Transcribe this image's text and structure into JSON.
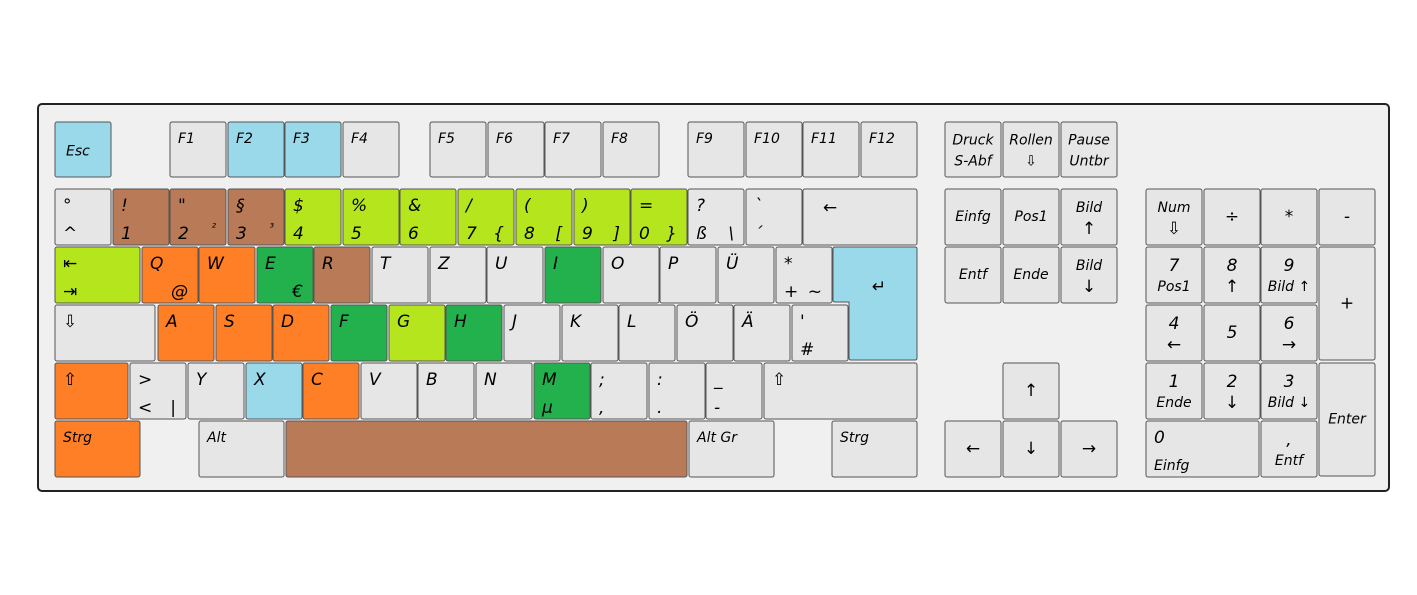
{
  "keyboard": {
    "rows": [
      [
        {
          "labels": [
            "Esc"
          ],
          "color": "#9ad9ea"
        },
        {
          "labels": [
            "F1"
          ],
          "color": "#e6e6e6"
        },
        {
          "labels": [
            "F2"
          ],
          "color": "#9ad9ea"
        },
        {
          "labels": [
            "F3"
          ],
          "color": "#9ad9ea"
        },
        {
          "labels": [
            "F4"
          ],
          "color": "#e6e6e6"
        },
        {
          "labels": [
            "F5"
          ],
          "color": "#e6e6e6"
        },
        {
          "labels": [
            "F6"
          ],
          "color": "#e6e6e6"
        },
        {
          "labels": [
            "F7"
          ],
          "color": "#e6e6e6"
        },
        {
          "labels": [
            "F8"
          ],
          "color": "#e6e6e6"
        },
        {
          "labels": [
            "F9"
          ],
          "color": "#e6e6e6"
        },
        {
          "labels": [
            "F10"
          ],
          "color": "#e6e6e6"
        },
        {
          "labels": [
            "F11"
          ],
          "color": "#e6e6e6"
        },
        {
          "labels": [
            "F12"
          ],
          "color": "#e6e6e6"
        },
        {
          "labels": [
            "Druck",
            "S-Abf"
          ],
          "color": "#e6e6e6"
        },
        {
          "labels": [
            "Rollen",
            "⇩"
          ],
          "color": "#e6e6e6"
        },
        {
          "labels": [
            "Pause",
            "Untbr"
          ],
          "color": "#e6e6e6"
        }
      ],
      [
        {
          "labels": [
            "°",
            "^"
          ],
          "color": "#e6e6e6"
        },
        {
          "labels": [
            "!",
            "1"
          ],
          "color": "#b97a57"
        },
        {
          "labels": [
            "\"",
            "2",
            "²"
          ],
          "color": "#b97a57"
        },
        {
          "labels": [
            "§",
            "3",
            "³"
          ],
          "color": "#b97a57"
        },
        {
          "labels": [
            "$",
            "4"
          ],
          "color": "#b5e61d"
        },
        {
          "labels": [
            "%",
            "5"
          ],
          "color": "#b5e61d"
        },
        {
          "labels": [
            "&",
            "6"
          ],
          "color": "#b5e61d"
        },
        {
          "labels": [
            "/",
            "7",
            "{"
          ],
          "color": "#b5e61d"
        },
        {
          "labels": [
            "(",
            "8",
            "["
          ],
          "color": "#b5e61d"
        },
        {
          "labels": [
            ")",
            "9",
            "]"
          ],
          "color": "#b5e61d"
        },
        {
          "labels": [
            "=",
            "0",
            "}"
          ],
          "color": "#b5e61d"
        },
        {
          "labels": [
            "?",
            "ß",
            "\\"
          ],
          "color": "#e6e6e6"
        },
        {
          "labels": [
            "`",
            "´"
          ],
          "color": "#e6e6e6"
        },
        {
          "labels": [
            "←"
          ],
          "color": "#e6e6e6"
        },
        {
          "labels": [
            "Einfg"
          ],
          "color": "#e6e6e6"
        },
        {
          "labels": [
            "Pos1"
          ],
          "color": "#e6e6e6"
        },
        {
          "labels": [
            "Bild",
            "↑"
          ],
          "color": "#e6e6e6"
        },
        {
          "labels": [
            "Num",
            "⇩"
          ],
          "color": "#e6e6e6"
        },
        {
          "labels": [
            "÷"
          ],
          "color": "#e6e6e6"
        },
        {
          "labels": [
            "*"
          ],
          "color": "#e6e6e6"
        },
        {
          "labels": [
            "-"
          ],
          "color": "#e6e6e6"
        }
      ],
      [
        {
          "labels": [
            "⇤",
            "⇥"
          ],
          "color": "#b5e61d"
        },
        {
          "labels": [
            "Q",
            "@"
          ],
          "color": "#ff7f27"
        },
        {
          "labels": [
            "W"
          ],
          "color": "#ff7f27"
        },
        {
          "labels": [
            "E",
            "€"
          ],
          "color": "#22b14c"
        },
        {
          "labels": [
            "R"
          ],
          "color": "#b97a57"
        },
        {
          "labels": [
            "T"
          ],
          "color": "#e6e6e6"
        },
        {
          "labels": [
            "Z"
          ],
          "color": "#e6e6e6"
        },
        {
          "labels": [
            "U"
          ],
          "color": "#e6e6e6"
        },
        {
          "labels": [
            "I"
          ],
          "color": "#22b14c"
        },
        {
          "labels": [
            "O"
          ],
          "color": "#e6e6e6"
        },
        {
          "labels": [
            "P"
          ],
          "color": "#e6e6e6"
        },
        {
          "labels": [
            "Ü"
          ],
          "color": "#e6e6e6"
        },
        {
          "labels": [
            "*",
            "+",
            "~"
          ],
          "color": "#e6e6e6"
        },
        {
          "labels": [
            "↵"
          ],
          "color": "#9ad9ea"
        },
        {
          "labels": [
            "Entf"
          ],
          "color": "#e6e6e6"
        },
        {
          "labels": [
            "Ende"
          ],
          "color": "#e6e6e6"
        },
        {
          "labels": [
            "Bild",
            "↓"
          ],
          "color": "#e6e6e6"
        },
        {
          "labels": [
            "7",
            "Pos1"
          ],
          "color": "#e6e6e6"
        },
        {
          "labels": [
            "8",
            "↑"
          ],
          "color": "#e6e6e6"
        },
        {
          "labels": [
            "9",
            "Bild ↑"
          ],
          "color": "#e6e6e6"
        },
        {
          "labels": [
            "+"
          ],
          "color": "#e6e6e6"
        }
      ],
      [
        {
          "labels": [
            "⇩"
          ],
          "color": "#e6e6e6"
        },
        {
          "labels": [
            "A"
          ],
          "color": "#ff7f27"
        },
        {
          "labels": [
            "S"
          ],
          "color": "#ff7f27"
        },
        {
          "labels": [
            "D"
          ],
          "color": "#ff7f27"
        },
        {
          "labels": [
            "F"
          ],
          "color": "#22b14c"
        },
        {
          "labels": [
            "G"
          ],
          "color": "#b5e61d"
        },
        {
          "labels": [
            "H"
          ],
          "color": "#22b14c"
        },
        {
          "labels": [
            "J"
          ],
          "color": "#e6e6e6"
        },
        {
          "labels": [
            "K"
          ],
          "color": "#e6e6e6"
        },
        {
          "labels": [
            "L"
          ],
          "color": "#e6e6e6"
        },
        {
          "labels": [
            "Ö"
          ],
          "color": "#e6e6e6"
        },
        {
          "labels": [
            "Ä"
          ],
          "color": "#e6e6e6"
        },
        {
          "labels": [
            "'",
            "#"
          ],
          "color": "#e6e6e6"
        },
        {
          "labels": [
            "4",
            "←"
          ],
          "color": "#e6e6e6"
        },
        {
          "labels": [
            "5"
          ],
          "color": "#e6e6e6"
        },
        {
          "labels": [
            "6",
            "→"
          ],
          "color": "#e6e6e6"
        }
      ],
      [
        {
          "labels": [
            "⇧"
          ],
          "color": "#ff7f27"
        },
        {
          "labels": [
            ">",
            "<",
            "|"
          ],
          "color": "#e6e6e6"
        },
        {
          "labels": [
            "Y"
          ],
          "color": "#e6e6e6"
        },
        {
          "labels": [
            "X"
          ],
          "color": "#9ad9ea"
        },
        {
          "labels": [
            "C"
          ],
          "color": "#ff7f27"
        },
        {
          "labels": [
            "V"
          ],
          "color": "#e6e6e6"
        },
        {
          "labels": [
            "B"
          ],
          "color": "#e6e6e6"
        },
        {
          "labels": [
            "N"
          ],
          "color": "#e6e6e6"
        },
        {
          "labels": [
            "M",
            "µ"
          ],
          "color": "#22b14c"
        },
        {
          "labels": [
            ";",
            ","
          ],
          "color": "#e6e6e6"
        },
        {
          "labels": [
            ":",
            "."
          ],
          "color": "#e6e6e6"
        },
        {
          "labels": [
            "_",
            "-"
          ],
          "color": "#e6e6e6"
        },
        {
          "labels": [
            "⇧"
          ],
          "color": "#e6e6e6"
        },
        {
          "labels": [
            "↑"
          ],
          "color": "#e6e6e6"
        },
        {
          "labels": [
            "1",
            "Ende"
          ],
          "color": "#e6e6e6"
        },
        {
          "labels": [
            "2",
            "↓"
          ],
          "color": "#e6e6e6"
        },
        {
          "labels": [
            "3",
            "Bild ↓"
          ],
          "color": "#e6e6e6"
        },
        {
          "labels": [
            "Enter"
          ],
          "color": "#e6e6e6"
        }
      ],
      [
        {
          "labels": [
            "Strg"
          ],
          "color": "#ff7f27"
        },
        {
          "labels": [
            "Alt"
          ],
          "color": "#e6e6e6"
        },
        {
          "labels": [],
          "color": "#b97a57"
        },
        {
          "labels": [
            "Alt Gr"
          ],
          "color": "#e6e6e6"
        },
        {
          "labels": [
            "Strg"
          ],
          "color": "#e6e6e6"
        },
        {
          "labels": [
            "←"
          ],
          "color": "#e6e6e6"
        },
        {
          "labels": [
            "↓"
          ],
          "color": "#e6e6e6"
        },
        {
          "labels": [
            "→"
          ],
          "color": "#e6e6e6"
        },
        {
          "labels": [
            "0",
            "Einfg"
          ],
          "color": "#e6e6e6"
        },
        {
          "labels": [
            ",",
            "Entf"
          ],
          "color": "#e6e6e6"
        }
      ]
    ]
  }
}
